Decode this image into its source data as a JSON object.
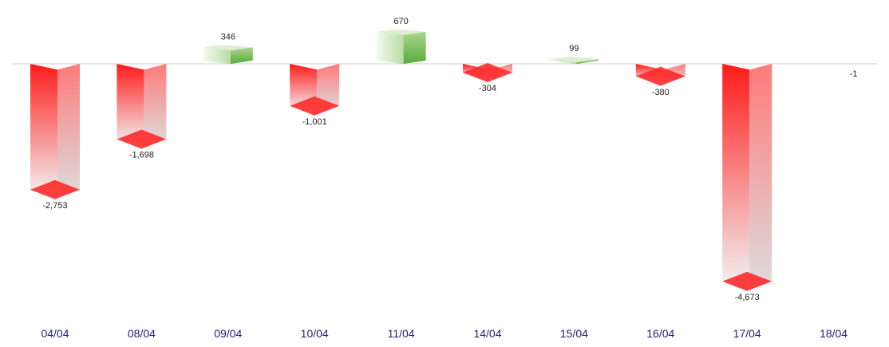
{
  "chart_data": {
    "type": "bar",
    "categories": [
      "04/04",
      "08/04",
      "09/04",
      "10/04",
      "11/04",
      "14/04",
      "15/04",
      "16/04",
      "17/04",
      "18/04"
    ],
    "values": [
      -2753,
      -1698,
      346,
      -1001,
      670,
      -304,
      99,
      -380,
      -4673,
      -1
    ],
    "value_labels": [
      "-2,753",
      "-1,698",
      "346",
      "-1,001",
      "670",
      "-304",
      "99",
      "-380",
      "-4,673",
      "-1"
    ],
    "title": "",
    "xlabel": "",
    "ylabel": "",
    "grid": false,
    "baseline_value": 0,
    "colors": {
      "positive": "#5aaa3c",
      "positive_light": "#e2f0d9",
      "negative": "#ff1a1a",
      "negative_light": "#e6e6e6",
      "category_text": "#1f1f7a",
      "baseline": "#cccccc"
    }
  }
}
